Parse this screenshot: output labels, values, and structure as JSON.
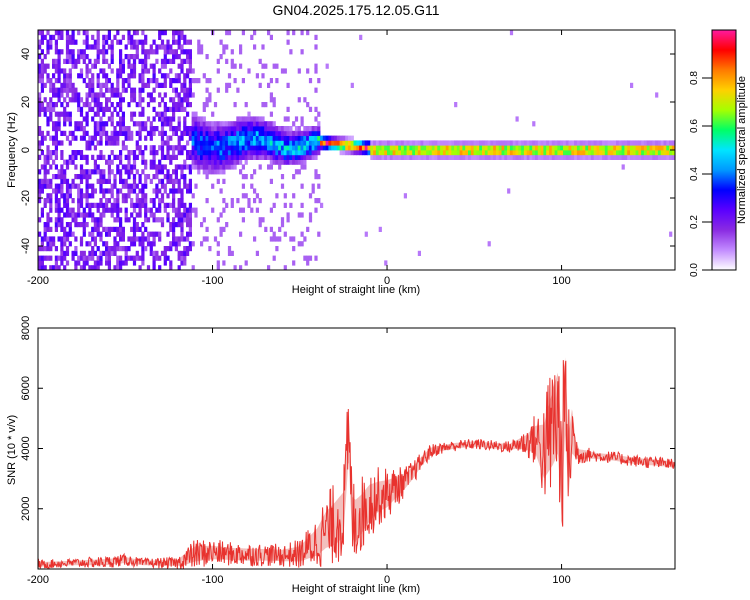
{
  "title": "GN04.2025.175.12.05.G11",
  "chart_data": [
    {
      "type": "heatmap",
      "xlabel": "Height of straight line (km)",
      "ylabel": "Frequency (Hz)",
      "xlim": [
        -200,
        165
      ],
      "ylim": [
        -50,
        50
      ],
      "x_ticks": [
        -200,
        -100,
        0,
        100
      ],
      "x_tick_labels": [
        "-200",
        "-100",
        "0",
        "100"
      ],
      "y_ticks": [
        -40,
        -20,
        0,
        20,
        40
      ],
      "y_tick_labels": [
        "-40",
        "-20",
        "0",
        "20",
        "40"
      ],
      "colorbar": {
        "label": "Normalized spectral amplitude",
        "range": [
          0,
          1
        ],
        "ticks": [
          0,
          0.2,
          0.4,
          0.6,
          0.8
        ],
        "tick_labels": [
          "0.0",
          "0.2",
          "0.4",
          "0.6",
          "0.8"
        ],
        "colormap": [
          "#ffffff",
          "#c28bff",
          "#8a2be2",
          "#5a00ff",
          "#0000ff",
          "#0099ff",
          "#00e5ff",
          "#00ff66",
          "#a6ff00",
          "#ffd000",
          "#ff7a00",
          "#ff0000",
          "#ff1aa0"
        ]
      },
      "regions": [
        {
          "x_range": [
            -200,
            -113
          ],
          "description_value": "broadband noise, amplitude ~0.1-0.25"
        },
        {
          "x_range": [
            -113,
            -40
          ],
          "center_freq_hz": 3,
          "half_width_hz": 10,
          "amplitude": 0.35
        },
        {
          "x_range": [
            -40,
            165
          ],
          "center_freq_hz": 0,
          "half_width_hz": 2,
          "amplitude": 0.9
        }
      ],
      "grid": false,
      "legend": "colorbar-right"
    },
    {
      "type": "line",
      "xlabel": "Height of straight line (km)",
      "ylabel": "SNR (10 * v/v)",
      "xlim": [
        -200,
        165
      ],
      "ylim": [
        0,
        8000
      ],
      "x_ticks": [
        -200,
        -100,
        0,
        100
      ],
      "x_tick_labels": [
        "-200",
        "-100",
        "0",
        "100"
      ],
      "y_ticks": [
        2000,
        4000,
        6000,
        8000
      ],
      "y_tick_labels": [
        "2000",
        "4000",
        "6000",
        "8000"
      ],
      "series": [
        {
          "color": "#e8322e",
          "x": [
            -200,
            -180,
            -160,
            -150,
            -140,
            -120,
            -115,
            -110,
            -100,
            -90,
            -80,
            -70,
            -60,
            -50,
            -40,
            -35,
            -30,
            -25,
            -22,
            -20,
            -18,
            -15,
            -10,
            -5,
            0,
            5,
            10,
            15,
            20,
            25,
            30,
            40,
            50,
            60,
            70,
            75,
            80,
            85,
            90,
            95,
            98,
            100,
            102,
            104,
            106,
            108,
            110,
            115,
            120,
            130,
            140,
            150,
            160,
            165
          ],
          "y": [
            150,
            200,
            230,
            300,
            200,
            200,
            350,
            500,
            550,
            500,
            480,
            470,
            450,
            500,
            900,
            1300,
            1500,
            1800,
            4500,
            1700,
            1600,
            1800,
            2200,
            2400,
            2500,
            2700,
            2900,
            3200,
            3600,
            3900,
            4000,
            4100,
            4150,
            4100,
            4050,
            4150,
            4200,
            4300,
            3900,
            4700,
            5200,
            3000,
            5800,
            3400,
            4600,
            4000,
            3800,
            3800,
            3750,
            3700,
            3600,
            3550,
            3500,
            3450
          ],
          "noise_band": [
            150,
            150,
            200,
            200,
            150,
            200,
            400,
            500,
            450,
            400,
            400,
            380,
            380,
            500,
            900,
            1200,
            1400,
            1500,
            1600,
            1400,
            1400,
            1300,
            1200,
            1000,
            900,
            700,
            500,
            400,
            300,
            250,
            200,
            180,
            180,
            180,
            200,
            300,
            500,
            900,
            1800,
            2500,
            2700,
            2600,
            2600,
            2000,
            1500,
            600,
            350,
            250,
            200,
            200,
            200,
            200,
            200,
            200
          ]
        }
      ],
      "grid": false
    }
  ]
}
